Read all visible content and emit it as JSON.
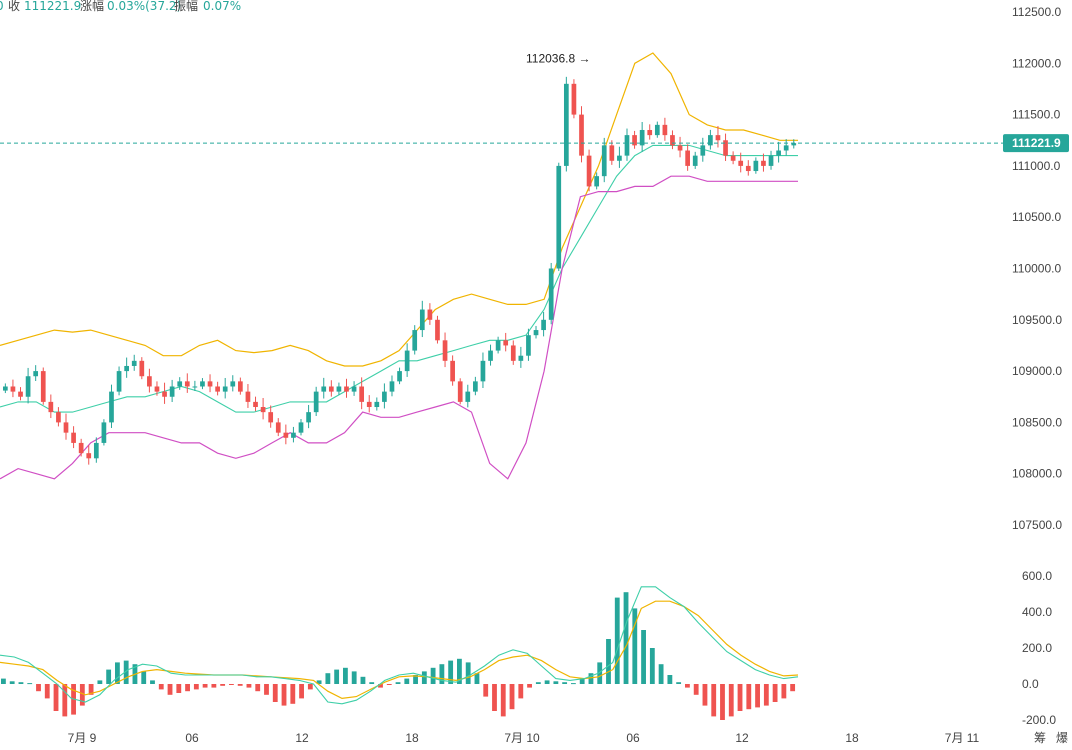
{
  "header": {
    "close_label": "收",
    "close_value": "111221.9",
    "change_label": "涨幅",
    "change_value": "0.03%(37.2)",
    "amplitude_label": "振幅",
    "amplitude_value": "0.07%"
  },
  "colors": {
    "up": "#26a69a",
    "down": "#ef5350",
    "upper_band": "#f0b400",
    "lower_band": "#d04fc4",
    "mid_band": "#3ecfa8",
    "macd_dif": "#3ecfa8",
    "macd_dea": "#f0b400",
    "price_tag": "#26a69a"
  },
  "chart_data": [
    {
      "type": "candlestick",
      "name": "price",
      "overlay": "Bollinger Bands (upper / middle / lower)",
      "ylim": [
        107200,
        112700
      ],
      "y_ticks": [
        "112500.0",
        "112000.0",
        "111500.0",
        "111000.0",
        "110500.0",
        "110000.0",
        "109500.0",
        "109000.0",
        "108500.0",
        "108000.0",
        "107500.0"
      ],
      "y_tick_values": [
        112500,
        112000,
        111500,
        111000,
        110500,
        110000,
        109500,
        109000,
        108500,
        108000,
        107500
      ],
      "x_labels": [
        "7月 9",
        "06",
        "12",
        "18",
        "7月 10",
        "06",
        "12",
        "18",
        "7月 11",
        "筹",
        "爆"
      ],
      "last_price": 111221.9,
      "last_price_label": "111221.9",
      "high_annotation": "112036.8 →",
      "high_value": 112036.8,
      "candles_close_path": [
        108850,
        108800,
        108750,
        108950,
        109000,
        108700,
        108600,
        108500,
        108400,
        108300,
        108200,
        108150,
        108300,
        108500,
        108800,
        109000,
        109050,
        109100,
        108950,
        108850,
        108800,
        108750,
        108850,
        108900,
        108850,
        108850,
        108900,
        108850,
        108800,
        108850,
        108900,
        108800,
        108700,
        108650,
        108600,
        108500,
        108400,
        108350,
        108400,
        108500,
        108600,
        108800,
        108850,
        108800,
        108850,
        108800,
        108850,
        108700,
        108650,
        108700,
        108800,
        108900,
        109000,
        109200,
        109400,
        109600,
        109500,
        109300,
        109100,
        108900,
        108700,
        108800,
        108900,
        109100,
        109200,
        109300,
        109250,
        109100,
        109150,
        109350,
        109400,
        109500,
        110000,
        111000,
        111800,
        111500,
        111100,
        110800,
        110900,
        111200,
        111050,
        111100,
        111300,
        111200,
        111350,
        111300,
        111400,
        111300,
        111200,
        111150,
        111000,
        111100,
        111200,
        111300,
        111250,
        111100,
        111050,
        111000,
        110950,
        111050,
        111000,
        111100,
        111150,
        111200,
        111221.9
      ],
      "upper_band_path": [
        109250,
        109300,
        109350,
        109400,
        109380,
        109400,
        109350,
        109300,
        109250,
        109150,
        109150,
        109250,
        109300,
        109200,
        109180,
        109200,
        109250,
        109200,
        109100,
        109050,
        109050,
        109100,
        109200,
        109400,
        109600,
        109700,
        109750,
        109700,
        109650,
        109650,
        109700,
        110200,
        110600,
        111000,
        111500,
        112000,
        112100,
        111900,
        111500,
        111400,
        111350,
        111350,
        111300,
        111250,
        111250
      ],
      "middle_band_path": [
        108650,
        108700,
        108700,
        108600,
        108600,
        108650,
        108700,
        108750,
        108750,
        108800,
        108850,
        108800,
        108700,
        108600,
        108600,
        108650,
        108700,
        108700,
        108700,
        108800,
        108900,
        109000,
        109100,
        109100,
        109150,
        109200,
        109250,
        109300,
        109300,
        109350,
        109600,
        110000,
        110300,
        110600,
        110900,
        111100,
        111200,
        111200,
        111200,
        111150,
        111100,
        111100,
        111100,
        111100,
        111100
      ],
      "lower_band_path": [
        107950,
        108050,
        108000,
        107950,
        108100,
        108300,
        108400,
        108400,
        108400,
        108350,
        108300,
        108300,
        108200,
        108150,
        108200,
        108300,
        108400,
        108300,
        108300,
        108400,
        108600,
        108550,
        108550,
        108600,
        108650,
        108700,
        108600,
        108100,
        107950,
        108300,
        109000,
        110000,
        110700,
        110750,
        110750,
        110800,
        110800,
        110900,
        110900,
        110850,
        110850,
        110850,
        110850,
        110850,
        110850
      ]
    },
    {
      "type": "bar+line",
      "name": "MACD",
      "ylim": [
        -250,
        700
      ],
      "y_ticks": [
        "600.0",
        "400.0",
        "200.0",
        "0.0",
        "-200.0"
      ],
      "y_tick_values": [
        600,
        400,
        200,
        0,
        -200
      ],
      "histogram": [
        30,
        15,
        10,
        5,
        -40,
        -80,
        -150,
        -180,
        -170,
        -120,
        -60,
        20,
        80,
        120,
        130,
        110,
        70,
        20,
        -30,
        -60,
        -50,
        -40,
        -30,
        -20,
        -20,
        -10,
        -5,
        -10,
        -20,
        -40,
        -60,
        -100,
        -120,
        -110,
        -80,
        -30,
        20,
        60,
        80,
        90,
        70,
        40,
        10,
        -20,
        -5,
        10,
        30,
        50,
        70,
        90,
        110,
        130,
        140,
        120,
        60,
        -70,
        -150,
        -180,
        -140,
        -80,
        -20,
        10,
        20,
        15,
        10,
        5,
        30,
        60,
        120,
        250,
        480,
        510,
        420,
        300,
        200,
        110,
        50,
        10,
        -20,
        -60,
        -120,
        -180,
        -200,
        -180,
        -150,
        -140,
        -130,
        -120,
        -100,
        -80,
        -40
      ],
      "dif_path": [
        160,
        150,
        120,
        60,
        0,
        -80,
        -100,
        -60,
        20,
        80,
        110,
        100,
        60,
        50,
        50,
        50,
        50,
        50,
        40,
        40,
        30,
        20,
        0,
        -100,
        -110,
        -90,
        -40,
        20,
        50,
        60,
        40,
        20,
        10,
        50,
        100,
        160,
        190,
        170,
        100,
        30,
        20,
        30,
        60,
        120,
        350,
        540,
        540,
        480,
        430,
        340,
        260,
        180,
        130,
        80,
        50,
        30,
        40
      ],
      "dea_path": [
        120,
        110,
        100,
        80,
        20,
        -30,
        -60,
        -40,
        0,
        40,
        70,
        80,
        70,
        60,
        55,
        50,
        50,
        50,
        45,
        40,
        35,
        30,
        20,
        -40,
        -80,
        -70,
        -30,
        10,
        40,
        45,
        40,
        30,
        20,
        40,
        80,
        130,
        150,
        160,
        130,
        80,
        40,
        30,
        40,
        80,
        220,
        420,
        460,
        460,
        430,
        380,
        300,
        220,
        160,
        110,
        70,
        45,
        50
      ]
    }
  ]
}
